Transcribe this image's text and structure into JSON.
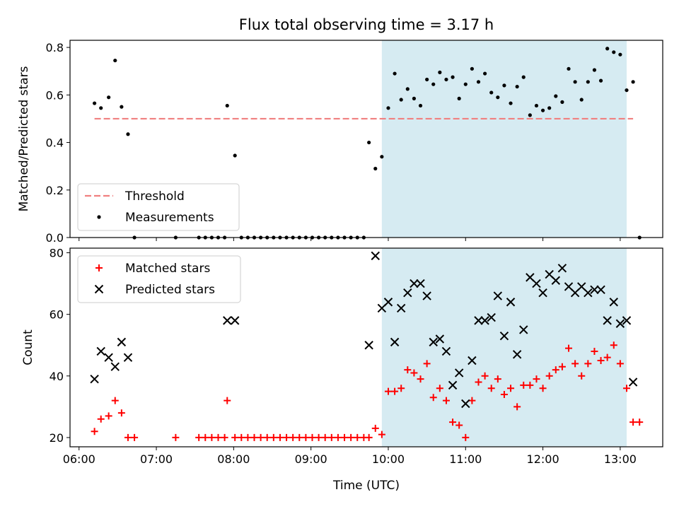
{
  "title": "Flux total observing time = 3.17 h",
  "colors": {
    "threshold": "#f08080",
    "measurement": "#000000",
    "matched": "#ff0000",
    "predicted": "#000000",
    "shade": "#add8e6"
  },
  "chart_data": [
    {
      "type": "scatter",
      "ylabel": "Matched/Predicted stars",
      "xlim": [
        "05:53",
        "13:33"
      ],
      "ylim": [
        0,
        0.83
      ],
      "yticks": [
        "0.0",
        "0.2",
        "0.4",
        "0.6",
        "0.8"
      ],
      "shaded_range": [
        "09:55",
        "13:05"
      ],
      "threshold": {
        "name": "Threshold",
        "value": 0.5,
        "x_range": [
          "06:12",
          "13:10"
        ]
      },
      "legend": {
        "position": "lower-left",
        "entries": [
          "Threshold",
          "Measurements"
        ]
      },
      "series": [
        {
          "name": "Measurements",
          "marker": "dot",
          "points": [
            [
              "06:12",
              0.565
            ],
            [
              "06:17",
              0.545
            ],
            [
              "06:23",
              0.59
            ],
            [
              "06:28",
              0.745
            ],
            [
              "06:33",
              0.55
            ],
            [
              "06:38",
              0.435
            ],
            [
              "06:43",
              0
            ],
            [
              "07:15",
              0
            ],
            [
              "07:33",
              0
            ],
            [
              "07:38",
              0
            ],
            [
              "07:43",
              0
            ],
            [
              "07:48",
              0
            ],
            [
              "07:53",
              0
            ],
            [
              "07:55",
              0.555
            ],
            [
              "08:01",
              0.345
            ],
            [
              "08:06",
              0
            ],
            [
              "08:11",
              0
            ],
            [
              "08:16",
              0
            ],
            [
              "08:21",
              0
            ],
            [
              "08:26",
              0
            ],
            [
              "08:31",
              0
            ],
            [
              "08:36",
              0
            ],
            [
              "08:41",
              0
            ],
            [
              "08:46",
              0
            ],
            [
              "08:51",
              0
            ],
            [
              "08:56",
              0
            ],
            [
              "09:01",
              0
            ],
            [
              "09:06",
              0
            ],
            [
              "09:11",
              0
            ],
            [
              "09:16",
              0
            ],
            [
              "09:21",
              0
            ],
            [
              "09:26",
              0
            ],
            [
              "09:31",
              0
            ],
            [
              "09:36",
              0
            ],
            [
              "09:41",
              0
            ],
            [
              "09:45",
              0.4
            ],
            [
              "09:50",
              0.29
            ],
            [
              "09:55",
              0.34
            ],
            [
              "10:00",
              0.545
            ],
            [
              "10:05",
              0.69
            ],
            [
              "10:10",
              0.58
            ],
            [
              "10:15",
              0.625
            ],
            [
              "10:20",
              0.585
            ],
            [
              "10:25",
              0.555
            ],
            [
              "10:30",
              0.665
            ],
            [
              "10:35",
              0.645
            ],
            [
              "10:40",
              0.695
            ],
            [
              "10:45",
              0.665
            ],
            [
              "10:50",
              0.675
            ],
            [
              "10:55",
              0.585
            ],
            [
              "11:00",
              0.645
            ],
            [
              "11:05",
              0.71
            ],
            [
              "11:10",
              0.655
            ],
            [
              "11:15",
              0.69
            ],
            [
              "11:20",
              0.61
            ],
            [
              "11:25",
              0.59
            ],
            [
              "11:30",
              0.64
            ],
            [
              "11:35",
              0.565
            ],
            [
              "11:40",
              0.635
            ],
            [
              "11:45",
              0.675
            ],
            [
              "11:50",
              0.515
            ],
            [
              "11:55",
              0.555
            ],
            [
              "12:00",
              0.535
            ],
            [
              "12:05",
              0.545
            ],
            [
              "12:10",
              0.595
            ],
            [
              "12:15",
              0.57
            ],
            [
              "12:20",
              0.71
            ],
            [
              "12:25",
              0.655
            ],
            [
              "12:30",
              0.58
            ],
            [
              "12:35",
              0.655
            ],
            [
              "12:40",
              0.705
            ],
            [
              "12:45",
              0.66
            ],
            [
              "12:50",
              0.795
            ],
            [
              "12:55",
              0.78
            ],
            [
              "13:00",
              0.77
            ],
            [
              "13:05",
              0.62
            ],
            [
              "13:10",
              0.655
            ],
            [
              "13:15",
              0
            ]
          ]
        }
      ]
    },
    {
      "type": "scatter",
      "xlabel": "Time (UTC)",
      "ylabel": "Count",
      "xlim": [
        "05:53",
        "13:33"
      ],
      "ylim": [
        17,
        81.5
      ],
      "yticks": [
        "20",
        "40",
        "60",
        "80"
      ],
      "xticks": [
        "06:00",
        "07:00",
        "08:00",
        "09:00",
        "10:00",
        "11:00",
        "12:00",
        "13:00"
      ],
      "shaded_range": [
        "09:55",
        "13:05"
      ],
      "legend": {
        "position": "upper-left",
        "entries": [
          "Matched stars",
          "Predicted stars"
        ]
      },
      "series": [
        {
          "name": "Matched stars",
          "marker": "plus",
          "points": [
            [
              "06:12",
              22
            ],
            [
              "06:17",
              26
            ],
            [
              "06:23",
              27
            ],
            [
              "06:28",
              32
            ],
            [
              "06:33",
              28
            ],
            [
              "06:38",
              20
            ],
            [
              "06:43",
              20
            ],
            [
              "07:15",
              20
            ],
            [
              "07:33",
              20
            ],
            [
              "07:38",
              20
            ],
            [
              "07:43",
              20
            ],
            [
              "07:48",
              20
            ],
            [
              "07:53",
              20
            ],
            [
              "07:55",
              32
            ],
            [
              "08:01",
              20
            ],
            [
              "08:06",
              20
            ],
            [
              "08:11",
              20
            ],
            [
              "08:16",
              20
            ],
            [
              "08:21",
              20
            ],
            [
              "08:26",
              20
            ],
            [
              "08:31",
              20
            ],
            [
              "08:36",
              20
            ],
            [
              "08:41",
              20
            ],
            [
              "08:46",
              20
            ],
            [
              "08:51",
              20
            ],
            [
              "08:56",
              20
            ],
            [
              "09:01",
              20
            ],
            [
              "09:06",
              20
            ],
            [
              "09:11",
              20
            ],
            [
              "09:16",
              20
            ],
            [
              "09:21",
              20
            ],
            [
              "09:26",
              20
            ],
            [
              "09:31",
              20
            ],
            [
              "09:36",
              20
            ],
            [
              "09:41",
              20
            ],
            [
              "09:45",
              20
            ],
            [
              "09:50",
              23
            ],
            [
              "09:55",
              21
            ],
            [
              "10:00",
              35
            ],
            [
              "10:05",
              35
            ],
            [
              "10:10",
              36
            ],
            [
              "10:15",
              42
            ],
            [
              "10:20",
              41
            ],
            [
              "10:25",
              39
            ],
            [
              "10:30",
              44
            ],
            [
              "10:35",
              33
            ],
            [
              "10:40",
              36
            ],
            [
              "10:45",
              32
            ],
            [
              "10:50",
              25
            ],
            [
              "10:55",
              24
            ],
            [
              "11:00",
              20
            ],
            [
              "11:05",
              32
            ],
            [
              "11:10",
              38
            ],
            [
              "11:15",
              40
            ],
            [
              "11:20",
              36
            ],
            [
              "11:25",
              39
            ],
            [
              "11:30",
              34
            ],
            [
              "11:35",
              36
            ],
            [
              "11:40",
              30
            ],
            [
              "11:45",
              37
            ],
            [
              "11:50",
              37
            ],
            [
              "11:55",
              39
            ],
            [
              "12:00",
              36
            ],
            [
              "12:05",
              40
            ],
            [
              "12:10",
              42
            ],
            [
              "12:15",
              43
            ],
            [
              "12:20",
              49
            ],
            [
              "12:25",
              44
            ],
            [
              "12:30",
              40
            ],
            [
              "12:35",
              44
            ],
            [
              "12:40",
              48
            ],
            [
              "12:45",
              45
            ],
            [
              "12:50",
              46
            ],
            [
              "12:55",
              50
            ],
            [
              "13:00",
              44
            ],
            [
              "13:05",
              36
            ],
            [
              "13:10",
              25
            ],
            [
              "13:15",
              25
            ]
          ]
        },
        {
          "name": "Predicted stars",
          "marker": "x",
          "points": [
            [
              "06:12",
              39
            ],
            [
              "06:17",
              48
            ],
            [
              "06:23",
              46
            ],
            [
              "06:28",
              43
            ],
            [
              "06:33",
              51
            ],
            [
              "06:38",
              46
            ],
            [
              "07:55",
              58
            ],
            [
              "08:01",
              58
            ],
            [
              "09:45",
              50
            ],
            [
              "09:50",
              79
            ],
            [
              "09:55",
              62
            ],
            [
              "10:00",
              64
            ],
            [
              "10:05",
              51
            ],
            [
              "10:10",
              62
            ],
            [
              "10:15",
              67
            ],
            [
              "10:20",
              70
            ],
            [
              "10:25",
              70
            ],
            [
              "10:30",
              66
            ],
            [
              "10:35",
              51
            ],
            [
              "10:40",
              52
            ],
            [
              "10:45",
              48
            ],
            [
              "10:50",
              37
            ],
            [
              "10:55",
              41
            ],
            [
              "11:00",
              31
            ],
            [
              "11:05",
              45
            ],
            [
              "11:10",
              58
            ],
            [
              "11:15",
              58
            ],
            [
              "11:20",
              59
            ],
            [
              "11:25",
              66
            ],
            [
              "11:30",
              53
            ],
            [
              "11:35",
              64
            ],
            [
              "11:40",
              47
            ],
            [
              "11:45",
              55
            ],
            [
              "11:50",
              72
            ],
            [
              "11:55",
              70
            ],
            [
              "12:00",
              67
            ],
            [
              "12:05",
              73
            ],
            [
              "12:10",
              71
            ],
            [
              "12:15",
              75
            ],
            [
              "12:20",
              69
            ],
            [
              "12:25",
              67
            ],
            [
              "12:30",
              69
            ],
            [
              "12:35",
              67
            ],
            [
              "12:40",
              68
            ],
            [
              "12:45",
              68
            ],
            [
              "12:50",
              58
            ],
            [
              "12:55",
              64
            ],
            [
              "13:00",
              57
            ],
            [
              "13:05",
              58
            ],
            [
              "13:10",
              38
            ]
          ]
        }
      ]
    }
  ]
}
